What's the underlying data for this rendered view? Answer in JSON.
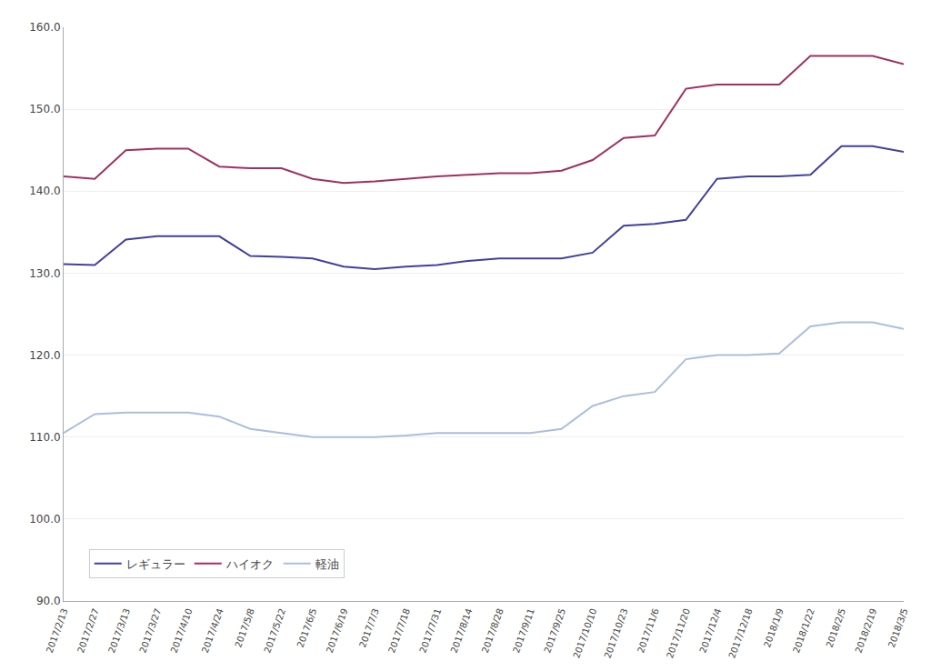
{
  "chart_data": {
    "type": "line",
    "categories": [
      "2017/2/13",
      "2017/2/27",
      "2017/3/13",
      "2017/3/27",
      "2017/4/10",
      "2017/4/24",
      "2017/5/8",
      "2017/5/22",
      "2017/6/5",
      "2017/6/19",
      "2017/7/3",
      "2017/7/18",
      "2017/7/31",
      "2017/8/14",
      "2017/8/28",
      "2017/9/11",
      "2017/9/25",
      "2017/10/10",
      "2017/10/23",
      "2017/11/6",
      "2017/11/20",
      "2017/12/4",
      "2017/12/18",
      "2018/1/9",
      "2018/1/22",
      "2018/2/5",
      "2018/2/19",
      "2018/3/5"
    ],
    "series": [
      {
        "name": "レギュラー",
        "color": "#4040a0",
        "values": [
          131.1,
          131.0,
          134.1,
          134.5,
          134.5,
          134.5,
          132.1,
          132.0,
          131.8,
          130.8,
          130.5,
          130.8,
          131.0,
          131.5,
          131.8,
          131.8,
          131.8,
          132.5,
          135.8,
          136.0,
          136.5,
          141.5,
          141.8,
          141.8,
          142.0,
          145.5,
          145.5,
          144.8
        ]
      },
      {
        "name": "ハイオク",
        "color": "#a03060",
        "values": [
          141.8,
          141.5,
          145.0,
          145.2,
          145.2,
          143.0,
          142.8,
          142.8,
          141.5,
          141.0,
          141.2,
          141.5,
          141.8,
          142.0,
          142.2,
          142.2,
          142.5,
          143.8,
          146.5,
          146.8,
          152.5,
          153.0,
          153.0,
          153.0,
          156.5,
          156.5,
          156.5,
          155.5
        ]
      },
      {
        "name": "軽油",
        "color": "#aabedd",
        "values": [
          110.5,
          112.8,
          113.0,
          113.0,
          113.0,
          112.5,
          111.0,
          110.5,
          110.0,
          110.0,
          110.0,
          110.2,
          110.5,
          110.5,
          110.5,
          110.5,
          111.0,
          113.8,
          115.0,
          115.5,
          119.5,
          120.0,
          120.0,
          120.2,
          123.5,
          124.0,
          124.0,
          123.2
        ]
      }
    ],
    "ylim": [
      90.0,
      160.0
    ],
    "yticks": [
      {
        "value": 90,
        "label": "90.0"
      },
      {
        "value": 100,
        "label": "100.0"
      },
      {
        "value": 110,
        "label": "110.0"
      },
      {
        "value": 120,
        "label": "120.0"
      },
      {
        "value": 130,
        "label": "130.0"
      },
      {
        "value": 140,
        "label": "140.0"
      },
      {
        "value": 150,
        "label": "150.0"
      },
      {
        "value": 160,
        "label": "160.0"
      }
    ],
    "grid": true,
    "legend": "lower left"
  }
}
